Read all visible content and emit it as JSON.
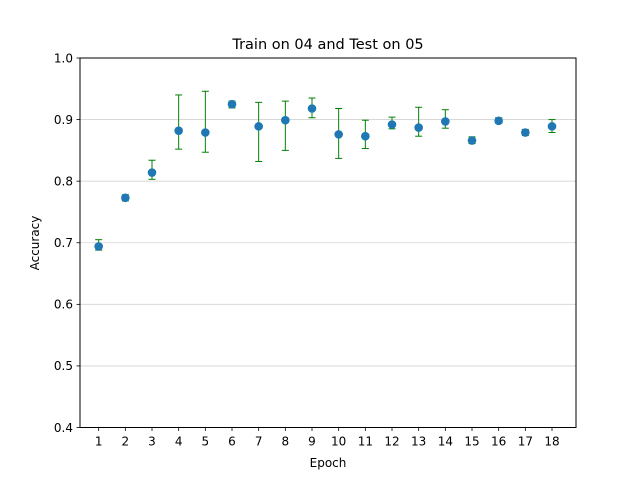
{
  "chart_data": {
    "type": "scatter",
    "title": "Train on 04 and Test on 05",
    "xlabel": "Epoch",
    "ylabel": "Accuracy",
    "x": [
      1,
      2,
      3,
      4,
      5,
      6,
      7,
      8,
      9,
      10,
      11,
      12,
      13,
      14,
      15,
      16,
      17,
      18
    ],
    "xticks": [
      "1",
      "2",
      "3",
      "4",
      "5",
      "6",
      "7",
      "8",
      "9",
      "10",
      "11",
      "12",
      "13",
      "14",
      "15",
      "16",
      "17",
      "18"
    ],
    "xlim": [
      0.3,
      18.9
    ],
    "ylim": [
      0.4,
      1.0
    ],
    "yticks": [
      "0.4",
      "0.5",
      "0.6",
      "0.7",
      "0.8",
      "0.9",
      "1.0"
    ],
    "ytick_values": [
      0.4,
      0.5,
      0.6,
      0.7,
      0.8,
      0.9,
      1.0
    ],
    "grid": "horizontal",
    "series": [
      {
        "values": [
          0.694,
          0.773,
          0.814,
          0.882,
          0.879,
          0.925,
          0.889,
          0.899,
          0.918,
          0.876,
          0.873,
          0.892,
          0.887,
          0.897,
          0.866,
          0.898,
          0.879,
          0.889
        ],
        "err_low": [
          0.688,
          0.768,
          0.803,
          0.852,
          0.847,
          0.919,
          0.832,
          0.85,
          0.903,
          0.837,
          0.853,
          0.885,
          0.873,
          0.886,
          0.861,
          0.894,
          0.874,
          0.879
        ],
        "err_high": [
          0.705,
          0.778,
          0.834,
          0.94,
          0.946,
          0.93,
          0.928,
          0.93,
          0.935,
          0.918,
          0.899,
          0.904,
          0.92,
          0.916,
          0.872,
          0.903,
          0.884,
          0.9
        ]
      }
    ],
    "colors": {
      "marker": "#1f77b4",
      "errorbar": "#008000",
      "grid": "#d3d3d3"
    }
  }
}
